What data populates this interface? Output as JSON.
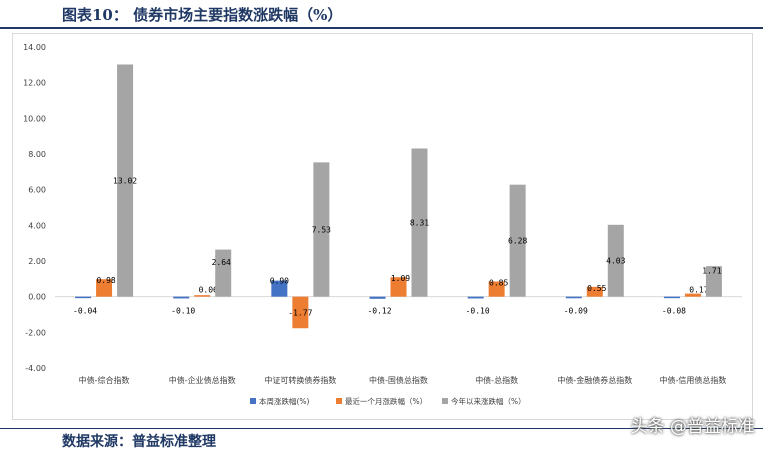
{
  "header": {
    "title": "图表10：  债券市场主要指数涨跌幅（%）"
  },
  "footer": {
    "source": "数据来源：普益标准整理"
  },
  "watermark": {
    "text": "头条 @普益标准"
  },
  "colors": {
    "week": "#4472c4",
    "month": "#ed7d31",
    "ytd": "#a5a5a5",
    "grid": "#d9d9d9",
    "text": "#404040"
  },
  "chart_data": {
    "type": "bar",
    "title": "债券市场主要指数涨跌幅（%）",
    "xlabel": "",
    "ylabel": "",
    "ylim": [
      -4,
      14
    ],
    "yticks": [
      "14.00",
      "12.00",
      "10.00",
      "8.00",
      "6.00",
      "4.00",
      "2.00",
      "0.00",
      "-2.00",
      "-4.00"
    ],
    "ytick_values": [
      14,
      12,
      10,
      8,
      6,
      4,
      2,
      0,
      -2,
      -4
    ],
    "grid": false,
    "legend_position": "bottom",
    "categories": [
      "中债-综合指数",
      "中债-企业债总指数",
      "中证可转换债券指数",
      "中债-国债总指数",
      "中债-总指数",
      "中债-金融债券总指数",
      "中债-信用债总指数"
    ],
    "series": [
      {
        "name": "本周涨跌幅(%)",
        "values": [
          -0.04,
          -0.1,
          0.9,
          -0.12,
          -0.1,
          -0.09,
          -0.08
        ],
        "labels": [
          "-0.04",
          "-0.10",
          "0.90",
          "-0.12",
          "-0.10",
          "-0.09",
          "-0.08"
        ]
      },
      {
        "name": "最近一个月涨跌幅（%）",
        "values": [
          0.98,
          0.06,
          -1.77,
          1.09,
          0.85,
          0.55,
          0.17
        ],
        "labels": [
          "0.98",
          "0.06",
          "-1.77",
          "1.09",
          "0.85",
          "0.55",
          "0.17"
        ]
      },
      {
        "name": "今年以来涨跌幅（%）",
        "values": [
          13.02,
          2.64,
          7.53,
          8.31,
          6.28,
          4.03,
          1.71
        ],
        "labels": [
          "13.02",
          "2.64",
          "7.53",
          "8.31",
          "6.28",
          "4.03",
          "1.71"
        ]
      }
    ]
  }
}
